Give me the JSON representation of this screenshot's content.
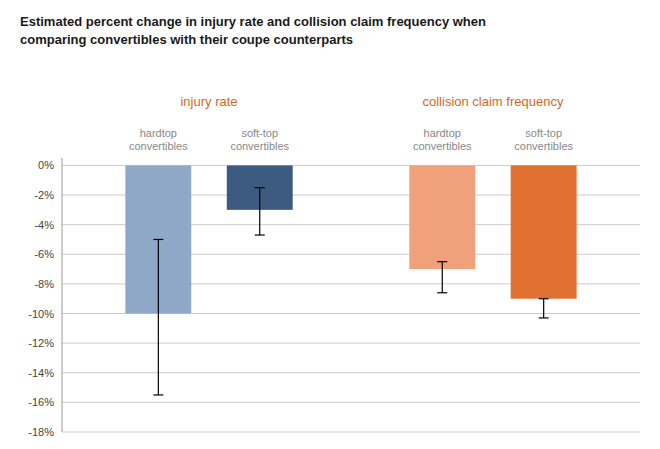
{
  "chart_data": {
    "type": "bar",
    "title": "Estimated percent change in injury rate and collision claim frequency when\ncomparing convertibles with their coupe counterparts",
    "categories": [
      "hardtop\nconvertibles",
      "soft-top\nconvertibles"
    ],
    "series": [
      {
        "name": "injury rate",
        "colors": [
          "#8fa8c8",
          "#3d5a80"
        ],
        "values": [
          -10,
          -3
        ],
        "error_lower": [
          -15.5,
          -4.7
        ],
        "error_upper": [
          -5,
          -1.5
        ]
      },
      {
        "name": "collision claim frequency",
        "colors": [
          "#f0a07a",
          "#e07030"
        ],
        "values": [
          -7,
          -9
        ],
        "error_lower": [
          -8.6,
          -10.3
        ],
        "error_upper": [
          -6.5,
          -9.0
        ]
      }
    ],
    "ylim": [
      -18,
      0.5
    ],
    "yticks": [
      {
        "value": 0,
        "label": "0%"
      },
      {
        "value": -2,
        "label": "-2%"
      },
      {
        "value": -4,
        "label": "-4%"
      },
      {
        "value": -6,
        "label": "-6%"
      },
      {
        "value": -8,
        "label": "-8%"
      },
      {
        "value": -10,
        "label": "-10%"
      },
      {
        "value": -12,
        "label": "-12%"
      },
      {
        "value": -14,
        "label": "-14%"
      },
      {
        "value": -16,
        "label": "-16%"
      },
      {
        "value": -18,
        "label": "-18%"
      }
    ],
    "grid": true
  }
}
